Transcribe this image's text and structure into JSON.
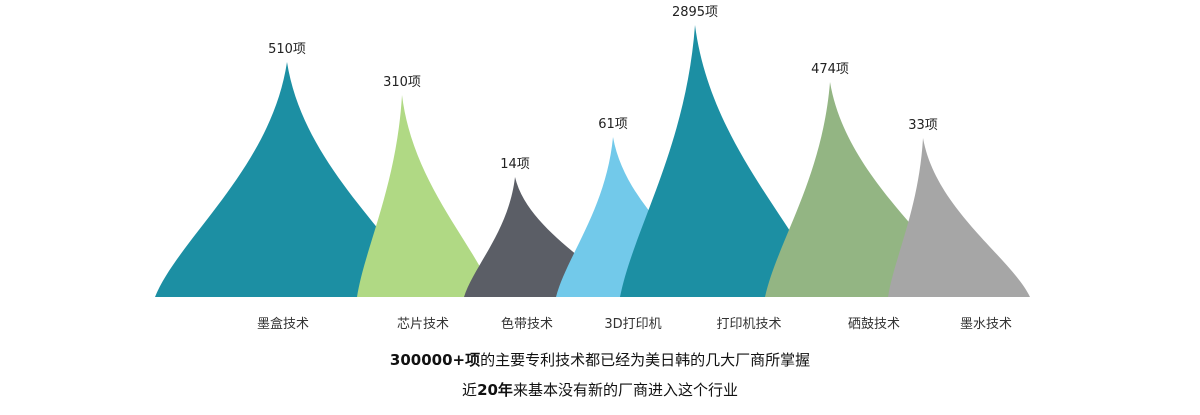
{
  "chart_data": {
    "type": "area",
    "categories": [
      "墨盒技术",
      "芯片技术",
      "色带技术",
      "3D打印机",
      "打印机技术",
      "硒鼓技术",
      "墨水技术"
    ],
    "values": [
      510,
      310,
      14,
      61,
      2895,
      474,
      33
    ],
    "value_labels": [
      "510项",
      "310项",
      "14项",
      "61项",
      "2895项",
      "474项",
      "33项"
    ],
    "colors": [
      "#1C8FA3",
      "#B0D984",
      "#5B5E66",
      "#72C9EA",
      "#1C8FA3",
      "#93B583",
      "#A6A6A6"
    ],
    "grid": false,
    "legend": "none"
  },
  "caption": {
    "line1_bold": "300000+项",
    "line1_rest": "的主要专利技术都已经为美日韩的几大厂商所掌握",
    "line2_pre": "近",
    "line2_bold": "20年",
    "line2_rest": "来基本没有新的厂商进入这个行业"
  }
}
